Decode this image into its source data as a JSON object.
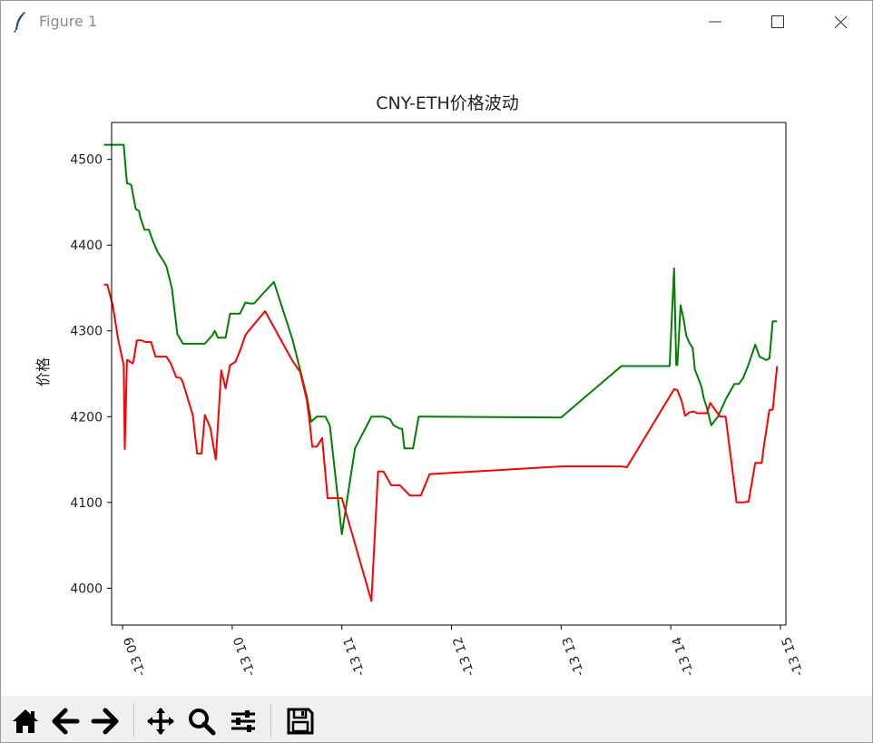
{
  "window": {
    "title": "Figure 1",
    "icon": "feather-icon",
    "controls": [
      "minimize-icon",
      "maximize-icon",
      "close-icon"
    ]
  },
  "toolbar": {
    "buttons": [
      "home-icon",
      "back-arrow-icon",
      "forward-arrow-icon",
      "pan-icon",
      "zoom-icon",
      "configure-subplots-icon",
      "save-icon"
    ]
  },
  "chart_data": {
    "type": "line",
    "title": "CNY-ETH价格波动",
    "xlabel": "",
    "ylabel": "价格",
    "xlim": [
      8.9,
      15.05
    ],
    "ylim": [
      3957,
      4543
    ],
    "x_ticks": [
      9,
      10,
      11,
      12,
      13,
      14,
      15
    ],
    "x_tick_labels": [
      "-13 09",
      "-13 10",
      "-13 11",
      "-13 12",
      "-13 13",
      "-13 14",
      "-13 15"
    ],
    "y_ticks": [
      4000,
      4100,
      4200,
      4300,
      4400,
      4500
    ],
    "grid": false,
    "colors": {
      "green": "#008000",
      "red": "#ff0000"
    },
    "series": [
      {
        "color": "#008000",
        "x": [
          8.83,
          8.96,
          8.97,
          9.01,
          9.04,
          9.05,
          9.08,
          9.09,
          9.12,
          9.15,
          9.16,
          9.2,
          9.24,
          9.27,
          9.32,
          9.35,
          9.38,
          9.4,
          9.45,
          9.5,
          9.55,
          9.6,
          9.65,
          9.7,
          9.75,
          9.77,
          9.82,
          9.84,
          9.87,
          9.89,
          9.9,
          9.94,
          9.98,
          10.03,
          10.07,
          10.12,
          10.16,
          10.2,
          10.27,
          10.38,
          10.55,
          10.68,
          10.72,
          10.77,
          10.8,
          10.82,
          10.85,
          10.89,
          11.0,
          11.12,
          11.27,
          11.33,
          11.38,
          11.44,
          11.47,
          11.53,
          11.55,
          11.57,
          11.6,
          11.65,
          11.7,
          11.78,
          13.0,
          13.55,
          13.7,
          13.96,
          13.99,
          14.03,
          14.05,
          14.06,
          14.09,
          14.12,
          14.14,
          14.17,
          14.2,
          14.22,
          14.25,
          14.28,
          14.3,
          14.33,
          14.37,
          14.43,
          14.5,
          14.58,
          14.62,
          14.66,
          14.71,
          14.77,
          14.81,
          14.84,
          14.87,
          14.9,
          14.93,
          14.97
        ],
        "y": [
          4517,
          4517,
          4517,
          4517,
          4472,
          4472,
          4470,
          4462,
          4442,
          4440,
          4433,
          4418,
          4418,
          4407,
          4392,
          4386,
          4380,
          4375,
          4350,
          4296,
          4285,
          4285,
          4285,
          4285,
          4285,
          4288,
          4295,
          4300,
          4292,
          4292,
          4292,
          4292,
          4320,
          4320,
          4320,
          4333,
          4332,
          4332,
          4342,
          4357,
          4290,
          4224,
          4194,
          4200,
          4200,
          4200,
          4200,
          4190,
          4063,
          4163,
          4200,
          4200,
          4200,
          4197,
          4190,
          4186,
          4186,
          4163,
          4163,
          4163,
          4200,
          4200,
          4199,
          4259,
          4259,
          4259,
          4259,
          4373,
          4260,
          4260,
          4330,
          4312,
          4295,
          4286,
          4280,
          4255,
          4245,
          4235,
          4222,
          4210,
          4190,
          4200,
          4220,
          4238,
          4238,
          4245,
          4261,
          4284,
          4270,
          4268,
          4266,
          4268,
          4311,
          4311
        ]
      },
      {
        "color": "#ff0000",
        "x": [
          8.83,
          8.86,
          8.91,
          8.96,
          9.01,
          9.02,
          9.04,
          9.05,
          9.09,
          9.1,
          9.13,
          9.17,
          9.21,
          9.26,
          9.3,
          9.35,
          9.4,
          9.44,
          9.49,
          9.53,
          9.55,
          9.64,
          9.68,
          9.72,
          9.75,
          9.8,
          9.85,
          9.9,
          9.94,
          9.98,
          10.03,
          10.08,
          10.12,
          10.15,
          10.3,
          10.55,
          10.62,
          10.68,
          10.7,
          10.73,
          10.77,
          10.82,
          10.87,
          11.0,
          11.27,
          11.33,
          11.38,
          11.45,
          11.48,
          11.53,
          11.62,
          11.67,
          11.72,
          11.8,
          13.0,
          13.55,
          13.6,
          13.95,
          14.03,
          14.06,
          14.1,
          14.13,
          14.17,
          14.21,
          14.24,
          14.3,
          14.33,
          14.36,
          14.45,
          14.5,
          14.6,
          14.66,
          14.71,
          14.77,
          14.83,
          14.85,
          14.9,
          14.93,
          14.97
        ],
        "y": [
          4354,
          4354,
          4330,
          4290,
          4260,
          4162,
          4266,
          4266,
          4262,
          4265,
          4289,
          4289,
          4287,
          4287,
          4270,
          4270,
          4270,
          4262,
          4246,
          4245,
          4240,
          4202,
          4157,
          4157,
          4202,
          4187,
          4150,
          4254,
          4233,
          4260,
          4264,
          4280,
          4295,
          4300,
          4323,
          4265,
          4252,
          4220,
          4200,
          4165,
          4165,
          4175,
          4105,
          4105,
          3985,
          4136,
          4136,
          4120,
          4120,
          4120,
          4108,
          4108,
          4108,
          4133,
          4142,
          4142,
          4141,
          4215,
          4232,
          4231,
          4218,
          4201,
          4205,
          4206,
          4204,
          4204,
          4204,
          4216,
          4200,
          4200,
          4100,
          4100,
          4101,
          4146,
          4146,
          4166,
          4208,
          4208,
          4259
        ]
      }
    ]
  }
}
